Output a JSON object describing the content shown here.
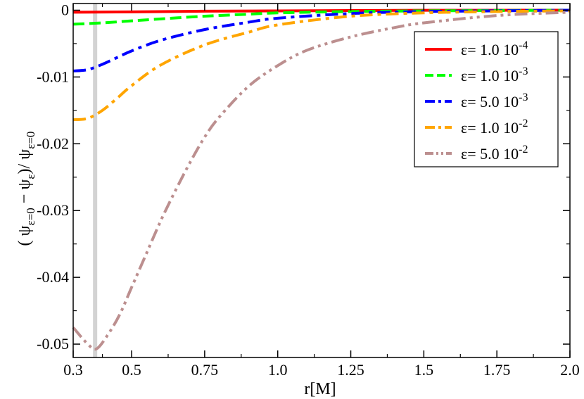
{
  "chart_data": {
    "type": "line",
    "xlabel": "r[M]",
    "ylabel": "( ψε=0 − ψε)/ ψε=0",
    "xlim": [
      0.3,
      2.0
    ],
    "ylim": [
      -0.052,
      0.001
    ],
    "x_ticks": [
      0.3,
      0.5,
      0.75,
      1.0,
      1.25,
      1.5,
      1.75,
      2.0
    ],
    "x_tick_labels": [
      "0.3",
      "0.5",
      "0.75",
      "1.0",
      "1.25",
      "1.5",
      "1.75",
      "2.0"
    ],
    "y_ticks": [
      0,
      -0.01,
      -0.02,
      -0.03,
      -0.04,
      -0.05
    ],
    "y_tick_labels": [
      "0",
      "-0.01",
      "-0.02",
      "-0.03",
      "-0.04",
      "-0.05"
    ],
    "grid": false,
    "legend_position": "top-right",
    "vertical_marker": {
      "x": 0.375,
      "color": "#d3d3d3"
    },
    "series": [
      {
        "name": "ε= 1.0 10-4",
        "label_main": "ε= 1.0 10",
        "label_exp": "-4",
        "color": "#ff0000",
        "dash": "solid",
        "x": [
          0.3,
          0.5,
          0.75,
          1.0,
          1.25,
          1.5,
          1.75,
          2.0
        ],
        "y": [
          -0.0003,
          -0.00025,
          -0.00015,
          -0.0001,
          -5e-05,
          -2e-05,
          -1e-05,
          0.0
        ]
      },
      {
        "name": "ε= 1.0 10-3",
        "label_main": "ε= 1.0 10",
        "label_exp": "-3",
        "color": "#00ff00",
        "dash": "dash",
        "x": [
          0.3,
          0.4,
          0.5,
          0.6,
          0.75,
          0.9,
          1.0,
          1.25,
          1.5,
          1.75,
          2.0
        ],
        "y": [
          -0.0021,
          -0.0019,
          -0.0016,
          -0.0013,
          -0.0009,
          -0.0006,
          -0.0004,
          -0.0002,
          -0.0001,
          -5e-05,
          0.0
        ]
      },
      {
        "name": "ε= 5.0 10-3",
        "label_main": "ε= 5.0 10",
        "label_exp": "-3",
        "color": "#0000ff",
        "dash": "dashdot",
        "x": [
          0.3,
          0.35,
          0.4,
          0.45,
          0.5,
          0.6,
          0.75,
          0.9,
          1.0,
          1.25,
          1.5,
          1.75,
          2.0
        ],
        "y": [
          -0.0091,
          -0.0089,
          -0.0081,
          -0.0071,
          -0.0061,
          -0.0045,
          -0.0029,
          -0.0018,
          -0.0012,
          -0.0005,
          -0.0002,
          -0.0001,
          0.0
        ]
      },
      {
        "name": "ε= 1.0 10-2",
        "label_main": "ε= 1.0 10",
        "label_exp": "-2",
        "color": "#ffa500",
        "dash": "dashdot",
        "x": [
          0.3,
          0.35,
          0.4,
          0.45,
          0.5,
          0.6,
          0.75,
          0.9,
          1.0,
          1.25,
          1.5,
          1.75,
          2.0
        ],
        "y": [
          -0.0164,
          -0.0162,
          -0.015,
          -0.0132,
          -0.0113,
          -0.0082,
          -0.0052,
          -0.0033,
          -0.0022,
          -0.0009,
          -0.0004,
          -0.0002,
          -0.0001
        ]
      },
      {
        "name": "ε= 5.0 10-2",
        "label_main": "ε= 5.0 10",
        "label_exp": "-2",
        "color": "#bc8f8f",
        "dash": "dashdotdot",
        "x": [
          0.3,
          0.35,
          0.38,
          0.42,
          0.46,
          0.5,
          0.55,
          0.6,
          0.65,
          0.7,
          0.75,
          0.8,
          0.9,
          1.0,
          1.1,
          1.25,
          1.4,
          1.5,
          1.75,
          2.0
        ],
        "y": [
          -0.0475,
          -0.05,
          -0.0507,
          -0.0485,
          -0.0455,
          -0.0415,
          -0.0365,
          -0.0315,
          -0.027,
          -0.0228,
          -0.019,
          -0.016,
          -0.0114,
          -0.0083,
          -0.006,
          -0.004,
          -0.0026,
          -0.0019,
          -0.0008,
          -0.0003
        ]
      }
    ]
  }
}
